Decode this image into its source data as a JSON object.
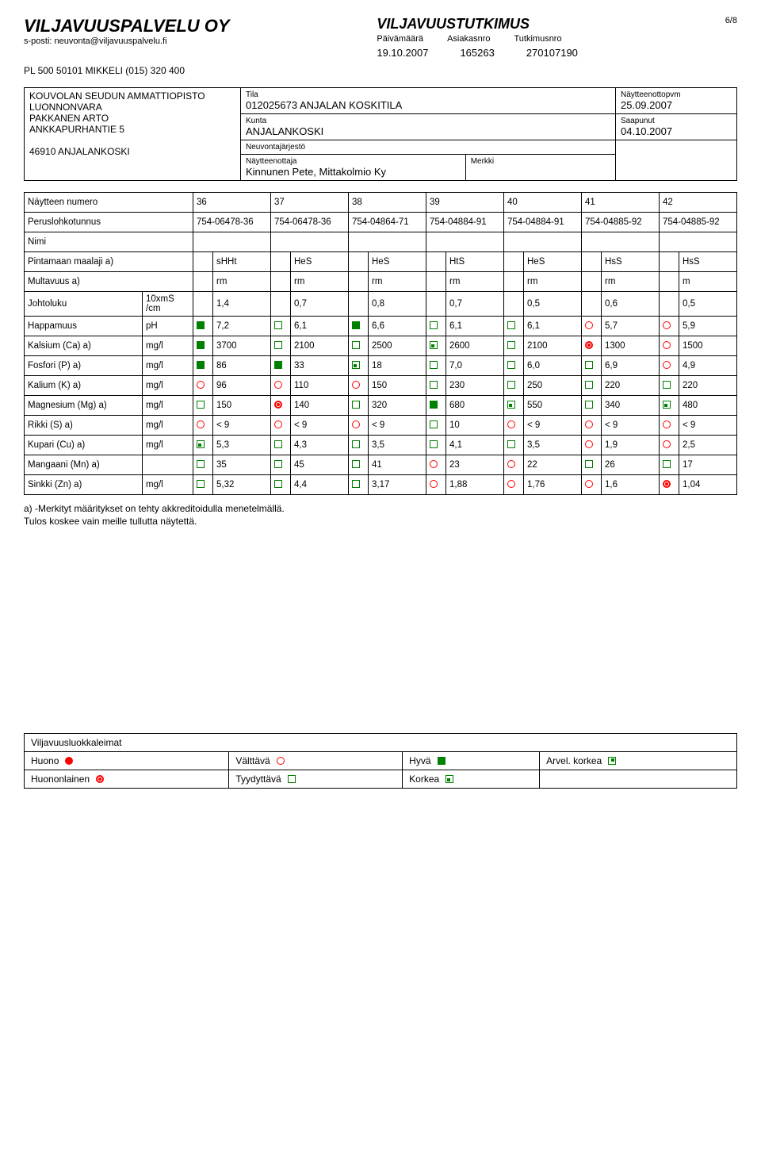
{
  "page_number": "6/8",
  "company": {
    "name": "VILJAVUUSPALVELU OY",
    "email_line": "s-posti: neuvonta@viljavuuspalvelu.fi",
    "address": "PL 500      50101 MIKKELI    (015) 320 400"
  },
  "report": {
    "title": "VILJAVUUSTUTKIMUS",
    "labels": {
      "date": "Päivämäärä",
      "customer": "Asiakasnro",
      "study": "Tutkimusnro"
    },
    "values": {
      "date": "19.10.2007",
      "customer": "165263",
      "study": "270107190"
    }
  },
  "info": {
    "left": [
      "KOUVOLAN SEUDUN AMMATTIOPISTO",
      "LUONNONVARA",
      "PAKKANEN ARTO",
      "ANKKAPURHANTIE 5",
      "",
      "46910 ANJALANKOSKI"
    ],
    "tila_label": "Tila",
    "tila": "012025673 ANJALAN KOSKITILA",
    "kunta_label": "Kunta",
    "kunta": "ANJALANKOSKI",
    "neuv_label": "Neuvontajärjestö",
    "neuv": "",
    "sampler_label": "Näytteenottaja",
    "sampler": "Kinnunen Pete, Mittakolmio Ky",
    "merkki_label": "Merkki",
    "merkki": "",
    "sampledate_label": "Näytteenottopvm",
    "sampledate": "25.09.2007",
    "arrived_label": "Saapunut",
    "arrived": "04.10.2007"
  },
  "table": {
    "row_sample_num": "Näytteen numero",
    "sample_nums": [
      "36",
      "37",
      "38",
      "39",
      "40",
      "41",
      "42"
    ],
    "row_parcel": "Peruslohkotunnus",
    "parcels": [
      "754-06478-36",
      "754-06478-36",
      "754-04864-71",
      "754-04884-91",
      "754-04884-91",
      "754-04885-92",
      "754-04885-92"
    ],
    "row_nimi": "Nimi",
    "row_soil": "Pintamaan maalaji a)",
    "soils": [
      "sHHt",
      "HeS",
      "HeS",
      "HtS",
      "HeS",
      "HsS",
      "HsS"
    ],
    "row_mult": "Multavuus a)",
    "mults": [
      "rm",
      "rm",
      "rm",
      "rm",
      "rm",
      "rm",
      "m"
    ],
    "rows": [
      {
        "label": "Johtoluku",
        "unit": "10xmS /cm",
        "vals": [
          [
            "",
            "1,4"
          ],
          [
            "",
            "0,7"
          ],
          [
            "",
            "0,8"
          ],
          [
            "",
            "0,7"
          ],
          [
            "",
            "0,5"
          ],
          [
            "",
            "0,6"
          ],
          [
            "",
            "0,5"
          ]
        ]
      },
      {
        "label": "Happamuus",
        "unit": "pH",
        "vals": [
          [
            "hyva",
            "7,2"
          ],
          [
            "tyydyttava",
            "6,1"
          ],
          [
            "hyva",
            "6,6"
          ],
          [
            "tyydyttava",
            "6,1"
          ],
          [
            "tyydyttava",
            "6,1"
          ],
          [
            "valttava",
            "5,7"
          ],
          [
            "valttava",
            "5,9"
          ]
        ]
      },
      {
        "label": "Kalsium (Ca) a)",
        "unit": "mg/l",
        "vals": [
          [
            "hyva",
            "3700"
          ],
          [
            "tyydyttava",
            "2100"
          ],
          [
            "tyydyttava",
            "2500"
          ],
          [
            "korkea",
            "2600"
          ],
          [
            "tyydyttava",
            "2100"
          ],
          [
            "huononlainen",
            "1300"
          ],
          [
            "valttava",
            "1500"
          ]
        ]
      },
      {
        "label": "Fosfori (P) a)",
        "unit": "mg/l",
        "vals": [
          [
            "hyva",
            "86"
          ],
          [
            "hyva",
            "33"
          ],
          [
            "korkea",
            "18"
          ],
          [
            "tyydyttava",
            "7,0"
          ],
          [
            "tyydyttava",
            "6,0"
          ],
          [
            "tyydyttava",
            "6,9"
          ],
          [
            "valttava",
            "4,9"
          ]
        ]
      },
      {
        "label": "Kalium (K) a)",
        "unit": "mg/l",
        "vals": [
          [
            "valttava",
            "96"
          ],
          [
            "valttava",
            "110"
          ],
          [
            "valttava",
            "150"
          ],
          [
            "tyydyttava",
            "230"
          ],
          [
            "tyydyttava",
            "250"
          ],
          [
            "tyydyttava",
            "220"
          ],
          [
            "tyydyttava",
            "220"
          ]
        ]
      },
      {
        "label": "Magnesium (Mg) a)",
        "unit": "mg/l",
        "vals": [
          [
            "tyydyttava",
            "150"
          ],
          [
            "huononlainen",
            "140"
          ],
          [
            "tyydyttava",
            "320"
          ],
          [
            "hyva",
            "680"
          ],
          [
            "korkea",
            "550"
          ],
          [
            "tyydyttava",
            "340"
          ],
          [
            "korkea",
            "480"
          ]
        ]
      },
      {
        "label": "Rikki (S) a)",
        "unit": "mg/l",
        "vals": [
          [
            "valttava",
            "< 9"
          ],
          [
            "valttava",
            "< 9"
          ],
          [
            "valttava",
            "< 9"
          ],
          [
            "tyydyttava",
            "10"
          ],
          [
            "valttava",
            "< 9"
          ],
          [
            "valttava",
            "< 9"
          ],
          [
            "valttava",
            "< 9"
          ]
        ]
      },
      {
        "label": "Kupari (Cu) a)",
        "unit": "mg/l",
        "vals": [
          [
            "korkea",
            "5,3"
          ],
          [
            "tyydyttava",
            "4,3"
          ],
          [
            "tyydyttava",
            "3,5"
          ],
          [
            "tyydyttava",
            "4,1"
          ],
          [
            "tyydyttava",
            "3,5"
          ],
          [
            "valttava",
            "1,9"
          ],
          [
            "valttava",
            "2,5"
          ]
        ]
      },
      {
        "label": "Mangaani (Mn) a)",
        "unit": "",
        "vals": [
          [
            "tyydyttava",
            "35"
          ],
          [
            "tyydyttava",
            "45"
          ],
          [
            "tyydyttava",
            "41"
          ],
          [
            "valttava",
            "23"
          ],
          [
            "valttava",
            "22"
          ],
          [
            "tyydyttava",
            "26"
          ],
          [
            "tyydyttava",
            "17"
          ]
        ]
      },
      {
        "label": "Sinkki (Zn) a)",
        "unit": "mg/l",
        "vals": [
          [
            "tyydyttava",
            "5,32"
          ],
          [
            "tyydyttava",
            "4,4"
          ],
          [
            "tyydyttava",
            "3,17"
          ],
          [
            "valttava",
            "1,88"
          ],
          [
            "valttava",
            "1,76"
          ],
          [
            "valttava",
            "1,6"
          ],
          [
            "huononlainen",
            "1,04"
          ]
        ]
      }
    ]
  },
  "footnote1": "a) -Merkityt määritykset on tehty akkreditoidulla menetelmällä.",
  "footnote2": "Tulos koskee vain meille tullutta näytettä.",
  "legend": {
    "title": "Viljavuusluokkaleimat",
    "items": [
      [
        "huono",
        "Huono"
      ],
      [
        "valttava",
        "Välttävä"
      ],
      [
        "hyva",
        "Hyvä"
      ],
      [
        "arvel",
        "Arvel. korkea"
      ],
      [
        "huononlainen",
        "Huononlainen"
      ],
      [
        "tyydyttava",
        "Tyydyttävä"
      ],
      [
        "korkea",
        "Korkea"
      ],
      [
        "",
        ""
      ]
    ]
  }
}
